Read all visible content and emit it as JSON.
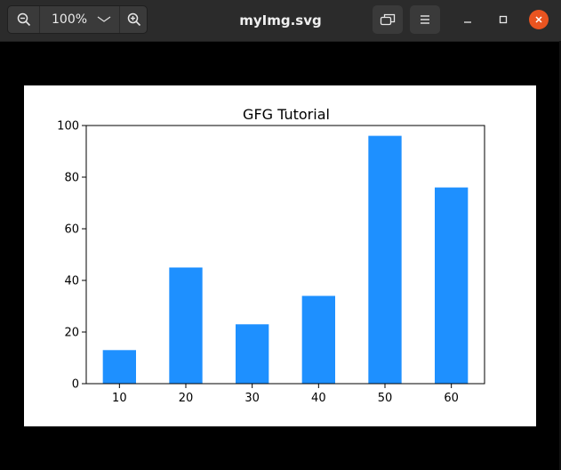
{
  "window": {
    "title": "myImg.svg",
    "zoom_label": "100%",
    "icons": {
      "zoom_out": "zoom-out-icon",
      "zoom_in": "zoom-in-icon",
      "zoom_menu": "chevron-down-icon",
      "view_toggle": "window-restore-icon",
      "menu": "hamburger-menu-icon",
      "minimize": "minimize-icon",
      "maximize": "maximize-icon",
      "close": "close-icon"
    },
    "colors": {
      "titlebar": "#2b2b2b",
      "close": "#e95420",
      "background": "#000000"
    }
  },
  "chart_data": {
    "type": "bar",
    "title": "GFG Tutorial",
    "xlabel": "",
    "ylabel": "",
    "categories": [
      "10",
      "20",
      "30",
      "40",
      "50",
      "60"
    ],
    "values": [
      13,
      45,
      23,
      34,
      96,
      76
    ],
    "ylim": [
      0,
      100
    ],
    "yticks": [
      0,
      20,
      40,
      60,
      80,
      100
    ],
    "grid": false,
    "bar_color": "#1e90ff"
  }
}
